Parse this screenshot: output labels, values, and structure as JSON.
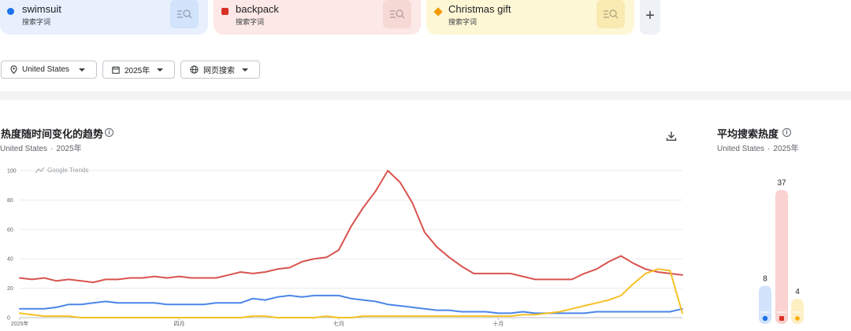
{
  "terms": [
    {
      "name": "swimsuit",
      "sub": "搜索字词",
      "color": "#1a73e8",
      "shape": "circle"
    },
    {
      "name": "backpack",
      "sub": "搜索字词",
      "color": "#d93025",
      "shape": "square"
    },
    {
      "name": "Christmas gift",
      "sub": "搜索字词",
      "color": "#f9ab00",
      "shape": "diamond"
    }
  ],
  "add_term_label": "+",
  "filters": {
    "region": "United States",
    "period": "2025年",
    "search_type": "网页搜索"
  },
  "trend": {
    "title": "热度随时间变化的趋势",
    "region": "United States",
    "separator": "·",
    "period": "2025年"
  },
  "average": {
    "title": "平均搜索热度",
    "region": "United States",
    "separator": "·",
    "period": "2025年"
  },
  "watermark": "Google Trends",
  "chart_data": {
    "type": "line",
    "ylim": [
      0,
      100
    ],
    "yticks": [
      0,
      20,
      40,
      60,
      80,
      100
    ],
    "x_labels": [
      {
        "week": 0,
        "label": "2025年"
      },
      {
        "week": 13,
        "label": "四月"
      },
      {
        "week": 26,
        "label": "七月"
      },
      {
        "week": 39,
        "label": "十月"
      }
    ],
    "series": [
      {
        "name": "swimsuit",
        "color": "#4a86e8",
        "values": [
          6,
          6,
          6,
          7,
          9,
          9,
          10,
          11,
          10,
          10,
          10,
          10,
          9,
          9,
          9,
          9,
          10,
          10,
          10,
          13,
          12,
          14,
          15,
          14,
          15,
          15,
          15,
          13,
          12,
          11,
          9,
          8,
          7,
          6,
          5,
          5,
          4,
          4,
          4,
          3,
          3,
          4,
          3,
          3,
          3,
          3,
          3,
          4,
          4,
          4,
          4,
          4,
          4,
          4,
          6
        ]
      },
      {
        "name": "backpack",
        "color": "#d9534f",
        "values": [
          27,
          26,
          27,
          25,
          26,
          25,
          24,
          26,
          26,
          27,
          27,
          28,
          27,
          28,
          27,
          27,
          27,
          29,
          31,
          30,
          31,
          33,
          34,
          38,
          40,
          41,
          46,
          62,
          75,
          86,
          100,
          92,
          78,
          58,
          48,
          41,
          35,
          30,
          30,
          30,
          30,
          28,
          26,
          26,
          26,
          26,
          30,
          33,
          38,
          42,
          37,
          33,
          31,
          30,
          29
        ]
      },
      {
        "name": "Christmas gift",
        "color": "#f6c026",
        "values": [
          3,
          2,
          1,
          1,
          1,
          0,
          0,
          0,
          0,
          0,
          0,
          0,
          0,
          0,
          0,
          0,
          0,
          0,
          0,
          1,
          1,
          0,
          0,
          0,
          0,
          1,
          0,
          0,
          1,
          1,
          1,
          1,
          1,
          1,
          1,
          1,
          1,
          1,
          1,
          1,
          1,
          2,
          2,
          3,
          4,
          6,
          8,
          10,
          12,
          15,
          23,
          30,
          33,
          32,
          3
        ]
      }
    ],
    "averages": [
      {
        "name": "swimsuit",
        "value": 8,
        "label": "8"
      },
      {
        "name": "backpack",
        "value": 37,
        "label": "37"
      },
      {
        "name": "Christmas gift",
        "value": 4,
        "label": "4"
      }
    ]
  }
}
